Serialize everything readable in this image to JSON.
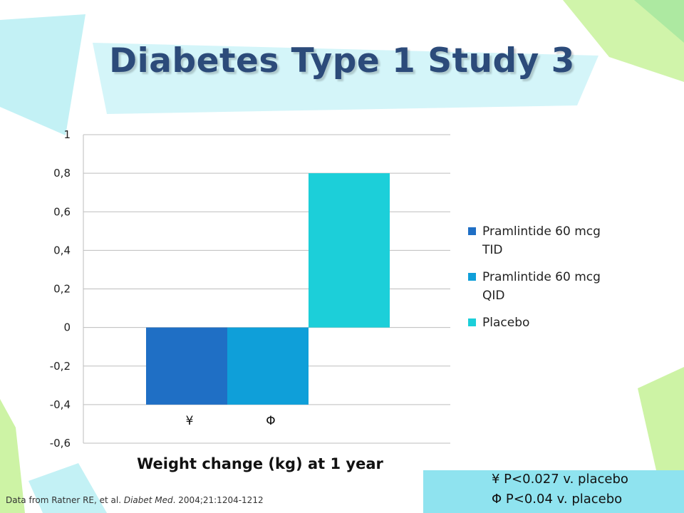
{
  "slide": {
    "title": "Diabetes Type 1 Study 3"
  },
  "chart_data": {
    "type": "bar",
    "title": "",
    "xlabel": "Weight change (kg) at 1 year",
    "ylabel": "",
    "ylim": [
      -0.6,
      1
    ],
    "yticks": [
      "1",
      "0,8",
      "0,6",
      "0,4",
      "0,2",
      "0",
      "-0,2",
      "-0,4",
      "-0,6"
    ],
    "ytick_values": [
      1,
      0.8,
      0.6,
      0.4,
      0.2,
      0,
      -0.2,
      -0.4,
      -0.6
    ],
    "grid": true,
    "legend_position": "right",
    "series": [
      {
        "name": "Pramlintide 60 mcg TID",
        "legend_lines": [
          "Pramlintide 60 mcg",
          "TID"
        ],
        "value": -0.4,
        "color": "#1f6fc5",
        "marker": "¥"
      },
      {
        "name": "Pramlintide 60 mcg QID",
        "legend_lines": [
          "Pramlintide 60 mcg",
          "QID"
        ],
        "value": -0.4,
        "color": "#0f9fd9",
        "marker": "Φ"
      },
      {
        "name": "Placebo",
        "legend_lines": [
          "Placebo"
        ],
        "value": 0.8,
        "color": "#1ccfd9",
        "marker": ""
      }
    ]
  },
  "source": {
    "prefix": "Data from Ratner RE, et al. ",
    "journal": "Diabet Med",
    "suffix": ".  2004;21:1204-1212"
  },
  "stats": {
    "line1": "¥ P<0.027 v. placebo",
    "line2": "Φ P<0.04 v. placebo"
  },
  "colors": {
    "accent_light": "#aef0f5",
    "accent_green": "#c8f29b",
    "accent_cyan": "#8fe3ef"
  }
}
